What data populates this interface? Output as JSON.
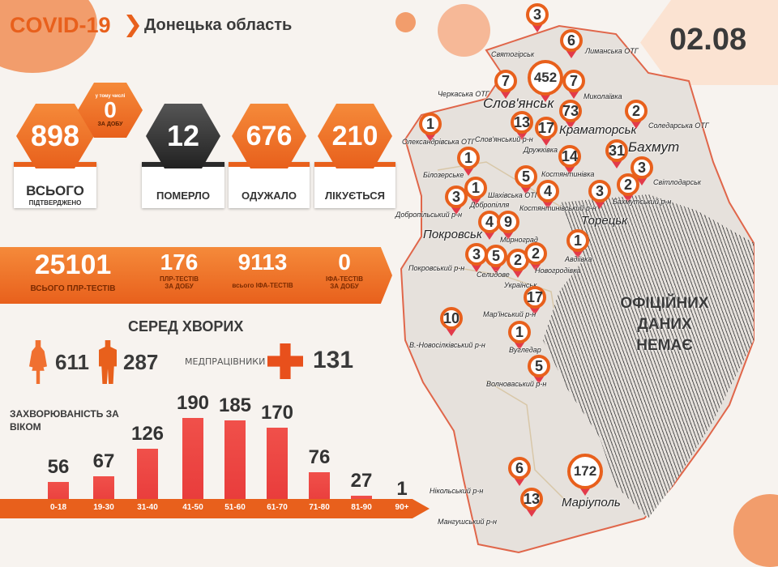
{
  "header": {
    "title": "COVID-19",
    "region": "Донецька область",
    "date": "02.08"
  },
  "stats": {
    "confirmed": {
      "value": "898",
      "label": "ВСЬОГО",
      "sublabel": "ПІДТВЕРДЖЕНО"
    },
    "daily": {
      "top": "у тому числі",
      "value": "0",
      "label": "ЗА ДОБУ"
    },
    "deaths": {
      "value": "12",
      "label": "ПОМЕРЛО"
    },
    "recovered": {
      "value": "676",
      "label": "ОДУЖАЛО"
    },
    "active": {
      "value": "210",
      "label": "ЛІКУЄТЬСЯ"
    }
  },
  "tests": [
    {
      "value": "25101",
      "label": "ВСЬОГО ПЛР-ТЕСТІВ"
    },
    {
      "value": "176",
      "label": "ПЛР-ТЕСТІВ ЗА ДОБУ"
    },
    {
      "value": "9113",
      "label": "всього ІФА-ТЕСТІВ"
    },
    {
      "value": "0",
      "label": "ІФА-ТЕСТІВ ЗА ДОБУ"
    }
  ],
  "among": {
    "title": "СЕРЕД ХВОРИХ",
    "women": "611",
    "men": "287",
    "medics_label": "МЕДПРАЦІВНИКИ",
    "medics": "131",
    "colors": {
      "accent": "#e8601c",
      "bar": "#e83a3a"
    }
  },
  "chart_data": {
    "type": "bar",
    "title": "ЗАХВОРЮВАНІСТЬ ЗА ВІКОМ",
    "categories": [
      "0-18",
      "19-30",
      "31-40",
      "41-50",
      "51-60",
      "61-70",
      "71-80",
      "81-90",
      "90+"
    ],
    "values": [
      56,
      67,
      126,
      190,
      185,
      170,
      76,
      27,
      1
    ],
    "labels": [
      "56",
      "67",
      "126",
      "190",
      "185",
      "170",
      "76",
      "27",
      "1"
    ]
  },
  "map": {
    "no_data": [
      "ОФІЦІЙНИХ",
      "ДАНИХ",
      "НЕМАЄ"
    ],
    "markers": [
      {
        "value": "3",
        "label": "Святогірськ"
      },
      {
        "value": "6",
        "label": "Лиманська ОТГ"
      },
      {
        "value": "452",
        "label": "Слов'янськ"
      },
      {
        "value": "7",
        "label": "Черкаська ОТГ"
      },
      {
        "value": "7",
        "label": "Миколаївка"
      },
      {
        "value": "73",
        "label": "Краматорськ"
      },
      {
        "value": "2",
        "label": "Соледарська ОТГ"
      },
      {
        "value": "1",
        "label": "Олександрівська ОТГ"
      },
      {
        "value": "13",
        "label": "Слов'янський р-н"
      },
      {
        "value": "17",
        "label": "Дружківка"
      },
      {
        "value": "31",
        "label": "Бахмут"
      },
      {
        "value": "14",
        "label": "Костянтинівка"
      },
      {
        "value": "1",
        "label": "Білозерське"
      },
      {
        "value": "3",
        "label": "Світлодарськ"
      },
      {
        "value": "2",
        "label": "Бахмутський р-н"
      },
      {
        "value": "5",
        "label": "Шахівська ОТГ"
      },
      {
        "value": "4",
        "label": "Костянтинівський р-н"
      },
      {
        "value": "3",
        "label": "Торецьк"
      },
      {
        "value": "3",
        "label": "Добропільський р-н"
      },
      {
        "value": "1",
        "label": "Добропілля"
      },
      {
        "value": "4",
        "label": "Покровськ"
      },
      {
        "value": "9",
        "label": "Мирноград"
      },
      {
        "value": "1",
        "label": "Авдіївка"
      },
      {
        "value": "3",
        "label": "Покровський р-н"
      },
      {
        "value": "5",
        "label": "Селидове"
      },
      {
        "value": "2",
        "label": "Українськ"
      },
      {
        "value": "2",
        "label": "Новогродівка"
      },
      {
        "value": "17",
        "label": "Мар'їнський р-н"
      },
      {
        "value": "10",
        "label": "В.-Новосілківський р-н"
      },
      {
        "value": "1",
        "label": "Вугледар"
      },
      {
        "value": "5",
        "label": "Волноваський р-н"
      },
      {
        "value": "6",
        "label": "Нікольський р-н"
      },
      {
        "value": "13",
        "label": "Мангушський р-н"
      },
      {
        "value": "172",
        "label": "Маріуполь"
      }
    ]
  }
}
